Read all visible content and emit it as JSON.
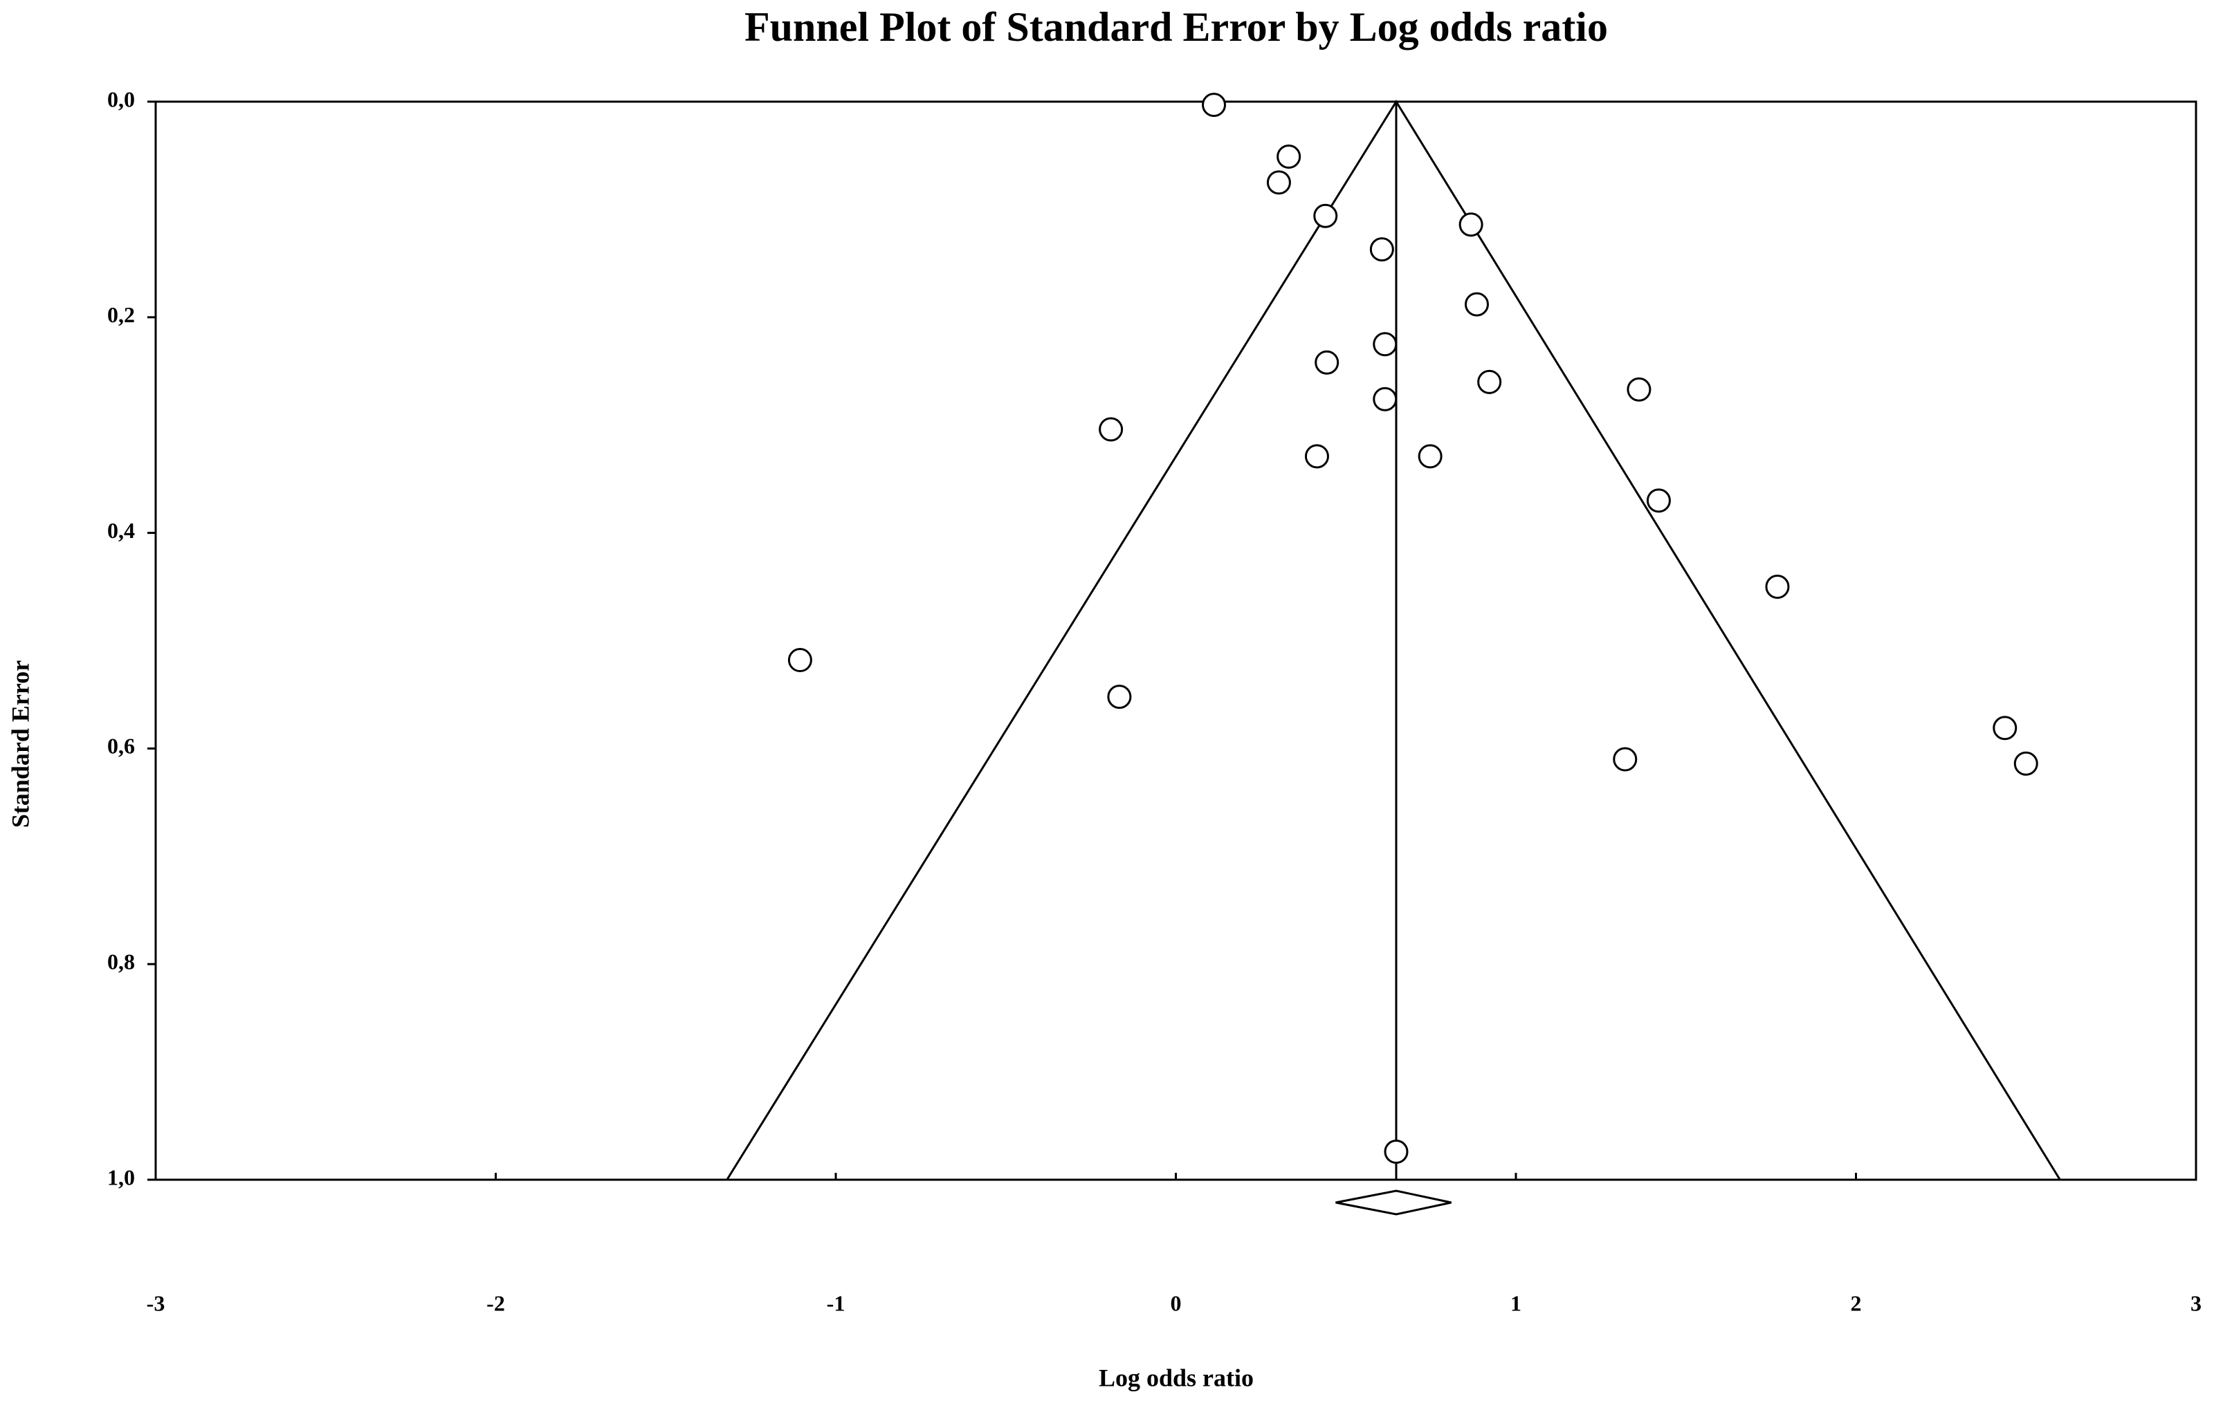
{
  "chart_data": {
    "type": "scatter",
    "title": "Funnel Plot of Standard Error by Log odds ratio",
    "x_label": "Log odds ratio",
    "y_label": "Standard Error",
    "x": [
      0.112,
      0.332,
      0.303,
      0.44,
      0.868,
      0.606,
      0.885,
      0.615,
      0.444,
      0.922,
      1.362,
      0.615,
      -0.191,
      0.415,
      0.748,
      1.42,
      1.769,
      -1.105,
      -0.166,
      1.321,
      2.438,
      2.5,
      0.648
    ],
    "values": [
      0.003,
      0.051,
      0.075,
      0.106,
      0.114,
      0.137,
      0.188,
      0.225,
      0.242,
      0.26,
      0.267,
      0.276,
      0.304,
      0.329,
      0.329,
      0.37,
      0.45,
      0.518,
      0.552,
      0.61,
      0.581,
      0.614,
      0.974
    ],
    "color": "#000000",
    "marker_fill": "#ffffff",
    "summary": {
      "estimate": 0.648,
      "ci": [
        0.47,
        0.81
      ]
    },
    "funnel_lines": {
      "x": [
        -1.32,
        0.648,
        2.6
      ],
      "y": [
        1.0,
        0.0,
        1.0
      ]
    },
    "xlim": [
      -3,
      3
    ],
    "xticks": [
      -3,
      -2,
      -1,
      0,
      1,
      2,
      3
    ],
    "ylim": [
      0,
      1
    ],
    "y_inverted": true,
    "yticks": [
      {
        "value": 0,
        "label": "0,0"
      },
      {
        "value": 0.2,
        "label": "0,2"
      },
      {
        "value": 0.4,
        "label": "0,4"
      },
      {
        "value": 0.6,
        "label": "0,6"
      },
      {
        "value": 0.8,
        "label": "0,8"
      },
      {
        "value": 1,
        "label": "1,0"
      }
    ]
  }
}
